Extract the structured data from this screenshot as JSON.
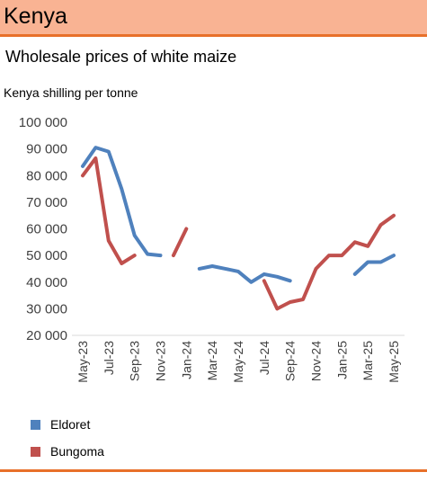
{
  "header": {
    "title": "Kenya"
  },
  "chart_data": {
    "type": "line",
    "title": "Wholesale prices of white maize",
    "ylabel": "Kenya shilling per tonne",
    "xlabel": "",
    "ylim": [
      20000,
      100000
    ],
    "yticks": [
      20000,
      30000,
      40000,
      50000,
      60000,
      70000,
      80000,
      90000,
      100000
    ],
    "ytick_labels": [
      "20 000",
      "30 000",
      "40 000",
      "50 000",
      "60 000",
      "70 000",
      "80 000",
      "90 000",
      "100 000"
    ],
    "x": [
      "May-23",
      "Jun-23",
      "Jul-23",
      "Aug-23",
      "Sep-23",
      "Oct-23",
      "Nov-23",
      "Dec-23",
      "Jan-24",
      "Feb-24",
      "Mar-24",
      "Apr-24",
      "May-24",
      "Jun-24",
      "Jul-24",
      "Aug-24",
      "Sep-24",
      "Oct-24",
      "Nov-24",
      "Dec-24",
      "Jan-25",
      "Feb-25",
      "Mar-25",
      "Apr-25",
      "May-25"
    ],
    "xtick_labels": [
      "May-23",
      "Jul-23",
      "Sep-23",
      "Nov-23",
      "Jan-24",
      "Mar-24",
      "May-24",
      "Jul-24",
      "Sep-24",
      "Nov-24",
      "Jan-25",
      "Mar-25",
      "May-25"
    ],
    "grid": false,
    "legend_position": "bottom-left",
    "series": [
      {
        "name": "Eldoret",
        "color": "#4f81bd",
        "values": [
          83500,
          90500,
          89000,
          75000,
          57500,
          50500,
          50000,
          null,
          null,
          45000,
          46000,
          45000,
          44000,
          40000,
          43000,
          42000,
          40500,
          null,
          null,
          null,
          null,
          43000,
          47500,
          47500,
          50000
        ]
      },
      {
        "name": "Bungoma",
        "color": "#c0504d",
        "values": [
          80000,
          86500,
          55500,
          47000,
          50000,
          null,
          null,
          50000,
          60000,
          null,
          null,
          null,
          null,
          null,
          40500,
          30000,
          32500,
          33500,
          45000,
          50000,
          50000,
          55000,
          53500,
          61500,
          65000
        ]
      }
    ]
  }
}
